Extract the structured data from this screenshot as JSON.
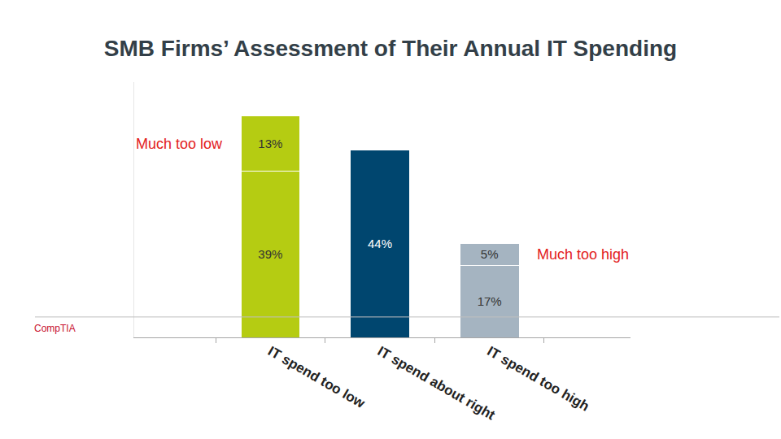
{
  "chart_data": {
    "type": "bar",
    "title": "SMB Firms’ Assessment of Their Annual IT Spending",
    "categories": [
      "IT spend too low",
      "IT spend about right",
      "IT spend too high"
    ],
    "series": [
      {
        "colors": [
          "#b5cc12",
          "#00466f",
          "#a5b4c1"
        ],
        "values": [
          39,
          44,
          17
        ],
        "value_labels": [
          "39%",
          "44%",
          "17%"
        ]
      },
      {
        "colors": [
          "#b5cc12",
          null,
          "#a5b4c1"
        ],
        "values": [
          13,
          null,
          5
        ],
        "value_labels": [
          "13%",
          null,
          "5%"
        ]
      }
    ],
    "stacked": true,
    "data_labels": true,
    "tick_labels": "x",
    "grid": false,
    "ylim": [
      0,
      60
    ],
    "annotations": [
      {
        "text": "Much too low",
        "category": "IT spend too low"
      },
      {
        "text": "Much too high",
        "category": "IT spend too high"
      }
    ],
    "source": "CompTIA"
  }
}
